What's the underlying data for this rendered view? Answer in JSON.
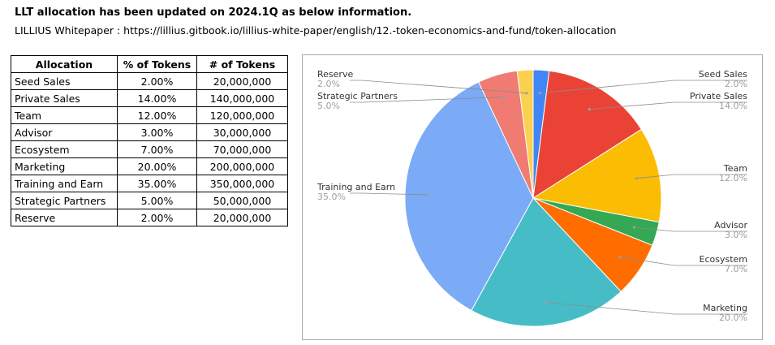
{
  "header": {
    "title": "LLT allocation has been updated on 2024.1Q as below information.",
    "source": "LILLIUS Whitepaper : https://lillius.gitbook.io/lillius-white-paper/english/12.-token-economics-and-fund/token-allocation"
  },
  "table": {
    "columns": [
      "Allocation",
      "% of Tokens",
      "# of Tokens"
    ],
    "rows": [
      [
        "Seed Sales",
        "2.00%",
        "20,000,000"
      ],
      [
        "Private Sales",
        "14.00%",
        "140,000,000"
      ],
      [
        "Team",
        "12.00%",
        "120,000,000"
      ],
      [
        "Advisor",
        "3.00%",
        "30,000,000"
      ],
      [
        "Ecosystem",
        "7.00%",
        "70,000,000"
      ],
      [
        "Marketing",
        "20.00%",
        "200,000,000"
      ],
      [
        "Training and Earn",
        "35.00%",
        "350,000,000"
      ],
      [
        "Strategic Partners",
        "5.00%",
        "50,000,000"
      ],
      [
        "Reserve",
        "2.00%",
        "20,000,000"
      ]
    ]
  },
  "chart_data": {
    "type": "pie",
    "title": "",
    "slices": [
      {
        "name": "Seed Sales",
        "value": 2.0,
        "label": "2.0%",
        "color": "#4285f4"
      },
      {
        "name": "Private Sales",
        "value": 14.0,
        "label": "14.0%",
        "color": "#ea4335"
      },
      {
        "name": "Team",
        "value": 12.0,
        "label": "12.0%",
        "color": "#fbbc04"
      },
      {
        "name": "Advisor",
        "value": 3.0,
        "label": "3.0%",
        "color": "#34a853"
      },
      {
        "name": "Ecosystem",
        "value": 7.0,
        "label": "7.0%",
        "color": "#ff6d01"
      },
      {
        "name": "Marketing",
        "value": 20.0,
        "label": "20.0%",
        "color": "#46bdc6"
      },
      {
        "name": "Training and Earn",
        "value": 35.0,
        "label": "35.0%",
        "color": "#7baaf7"
      },
      {
        "name": "Strategic Partners",
        "value": 5.0,
        "label": "5.0%",
        "color": "#f07b72"
      },
      {
        "name": "Reserve",
        "value": 2.0,
        "label": "2.0%",
        "color": "#fcd04f"
      }
    ],
    "start_angle": "top, clockwise",
    "legend": "labels with leader lines"
  }
}
